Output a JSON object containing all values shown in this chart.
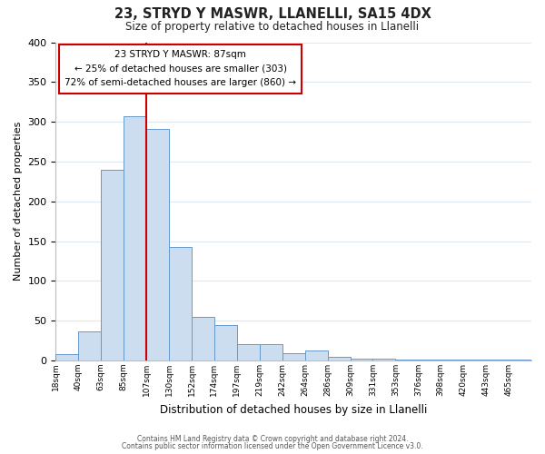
{
  "title": "23, STRYD Y MASWR, LLANELLI, SA15 4DX",
  "subtitle": "Size of property relative to detached houses in Llanelli",
  "xlabel": "Distribution of detached houses by size in Llanelli",
  "ylabel": "Number of detached properties",
  "bar_values": [
    8,
    37,
    240,
    307,
    291,
    143,
    55,
    45,
    20,
    20,
    9,
    13,
    5,
    2,
    2,
    1,
    1,
    1,
    1,
    1,
    1
  ],
  "all_labels": [
    "18sqm",
    "40sqm",
    "63sqm",
    "85sqm",
    "107sqm",
    "130sqm",
    "152sqm",
    "174sqm",
    "197sqm",
    "219sqm",
    "242sqm",
    "264sqm",
    "286sqm",
    "309sqm",
    "331sqm",
    "353sqm",
    "376sqm",
    "398sqm",
    "420sqm",
    "443sqm",
    "465sqm"
  ],
  "bar_color": "#ccddf0",
  "bar_edge_color": "#6699cc",
  "vline_color": "#cc0000",
  "annotation_title": "23 STRYD Y MASWR: 87sqm",
  "annotation_line1": "← 25% of detached houses are smaller (303)",
  "annotation_line2": "72% of semi-detached houses are larger (860) →",
  "annotation_box_color": "#ffffff",
  "annotation_box_edge": "#cc0000",
  "ylim": [
    0,
    400
  ],
  "yticks": [
    0,
    50,
    100,
    150,
    200,
    250,
    300,
    350,
    400
  ],
  "footer1": "Contains HM Land Registry data © Crown copyright and database right 2024.",
  "footer2": "Contains public sector information licensed under the Open Government Licence v3.0.",
  "background_color": "#ffffff",
  "plot_background": "#ffffff",
  "grid_color": "#dde8f0"
}
